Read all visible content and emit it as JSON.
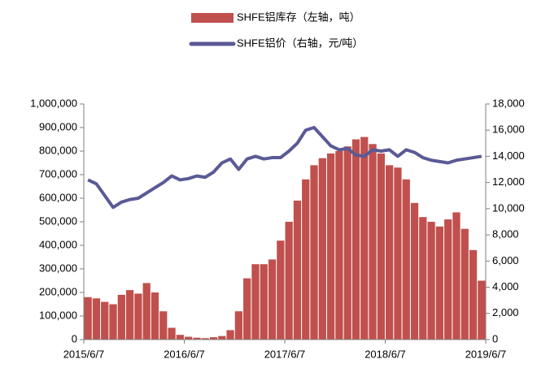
{
  "chart_data": {
    "type": "bar_line",
    "categories": [
      "2015/6/7",
      null,
      null,
      null,
      null,
      null,
      null,
      null,
      null,
      null,
      null,
      null,
      "2016/6/7",
      null,
      null,
      null,
      null,
      null,
      null,
      null,
      null,
      null,
      null,
      null,
      "2017/6/7",
      null,
      null,
      null,
      null,
      null,
      null,
      null,
      null,
      null,
      null,
      null,
      "2018/6/7",
      null,
      null,
      null,
      null,
      null,
      null,
      null,
      null,
      null,
      null,
      null,
      "2019/6/7"
    ],
    "series": [
      {
        "name": "SHFE铝库存（左轴，吨）",
        "type": "bar",
        "color": "#c0504d",
        "axis": "y",
        "values": [
          180000,
          175000,
          160000,
          150000,
          190000,
          210000,
          195000,
          240000,
          200000,
          120000,
          50000,
          20000,
          12000,
          8000,
          6000,
          10000,
          15000,
          40000,
          120000,
          260000,
          320000,
          320000,
          340000,
          420000,
          500000,
          590000,
          680000,
          740000,
          770000,
          790000,
          800000,
          820000,
          850000,
          860000,
          830000,
          790000,
          740000,
          730000,
          680000,
          580000,
          520000,
          500000,
          480000,
          510000,
          540000,
          470000,
          380000,
          250000,
          null
        ]
      },
      {
        "name": "SHFE铝价（右轴，元/吨）",
        "type": "line",
        "color": "#5a5a96",
        "axis": "y2",
        "values": [
          12200,
          11900,
          11000,
          10100,
          10500,
          10700,
          10800,
          11200,
          11600,
          12000,
          12500,
          12200,
          12300,
          12500,
          12400,
          12800,
          13500,
          13800,
          13000,
          13800,
          14000,
          13800,
          13900,
          13900,
          14400,
          15000,
          16000,
          16200,
          15500,
          14800,
          14500,
          14600,
          14100,
          14000,
          14500,
          14400,
          14500,
          14000,
          14500,
          14300,
          13900,
          13700,
          13600,
          13500,
          13700,
          13800,
          13900,
          14000,
          null
        ]
      }
    ],
    "ylim": [
      0,
      1000000
    ],
    "yticks": [
      0,
      {
        "value": 100000,
        "label": "100,000"
      },
      {
        "value": 200000,
        "label": "200,000"
      },
      {
        "value": 300000,
        "label": "300,000"
      },
      {
        "value": 400000,
        "label": "400,000"
      },
      {
        "value": 500000,
        "label": "500,000"
      },
      {
        "value": 600000,
        "label": "600,000"
      },
      {
        "value": 700000,
        "label": "700,000"
      },
      {
        "value": 800000,
        "label": "800,000"
      },
      {
        "value": 900000,
        "label": "900,000"
      },
      {
        "value": 1000000,
        "label": "1,000,000"
      }
    ],
    "y2lim": [
      0,
      18000
    ],
    "y2ticks": [
      0,
      {
        "value": 2000,
        "label": "2,000"
      },
      {
        "value": 4000,
        "label": "4,000"
      },
      {
        "value": 6000,
        "label": "6,000"
      },
      {
        "value": 8000,
        "label": "8,000"
      },
      {
        "value": 10000,
        "label": "10,000"
      },
      {
        "value": 12000,
        "label": "12,000"
      },
      {
        "value": 14000,
        "label": "14,000"
      },
      {
        "value": 16000,
        "label": "16,000"
      },
      {
        "value": 18000,
        "label": "18,000"
      }
    ],
    "legend": "top"
  }
}
